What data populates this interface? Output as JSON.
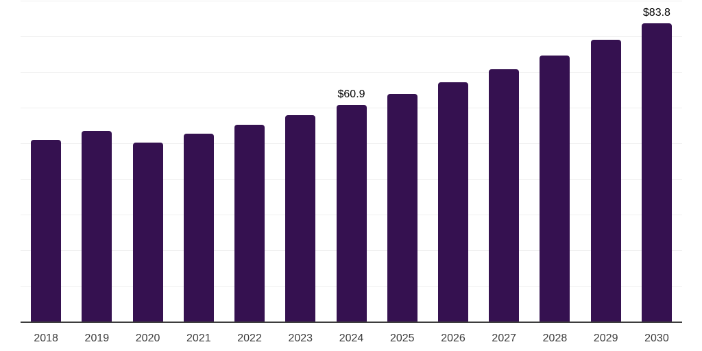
{
  "chart_data": {
    "type": "bar",
    "title": "",
    "xlabel": "",
    "ylabel": "",
    "categories": [
      "2018",
      "2019",
      "2020",
      "2021",
      "2022",
      "2023",
      "2024",
      "2025",
      "2026",
      "2027",
      "2028",
      "2029",
      "2030"
    ],
    "values": [
      51.1,
      53.6,
      50.3,
      52.8,
      55.3,
      58.0,
      60.9,
      64.1,
      67.4,
      71.0,
      74.9,
      79.2,
      83.8
    ],
    "data_labels": [
      {
        "category": "2024",
        "text": "$60.9"
      },
      {
        "category": "2030",
        "text": "$83.8"
      }
    ],
    "ylim": [
      0,
      90
    ],
    "gridline_step": 10,
    "grid": true,
    "legend": false,
    "colors": {
      "bar": "#351150",
      "gridline": "#efefef",
      "axis_line": "#3d3d3d",
      "tick_label": "#3c3c3c",
      "data_label": "#000000",
      "background": "#ffffff"
    }
  }
}
